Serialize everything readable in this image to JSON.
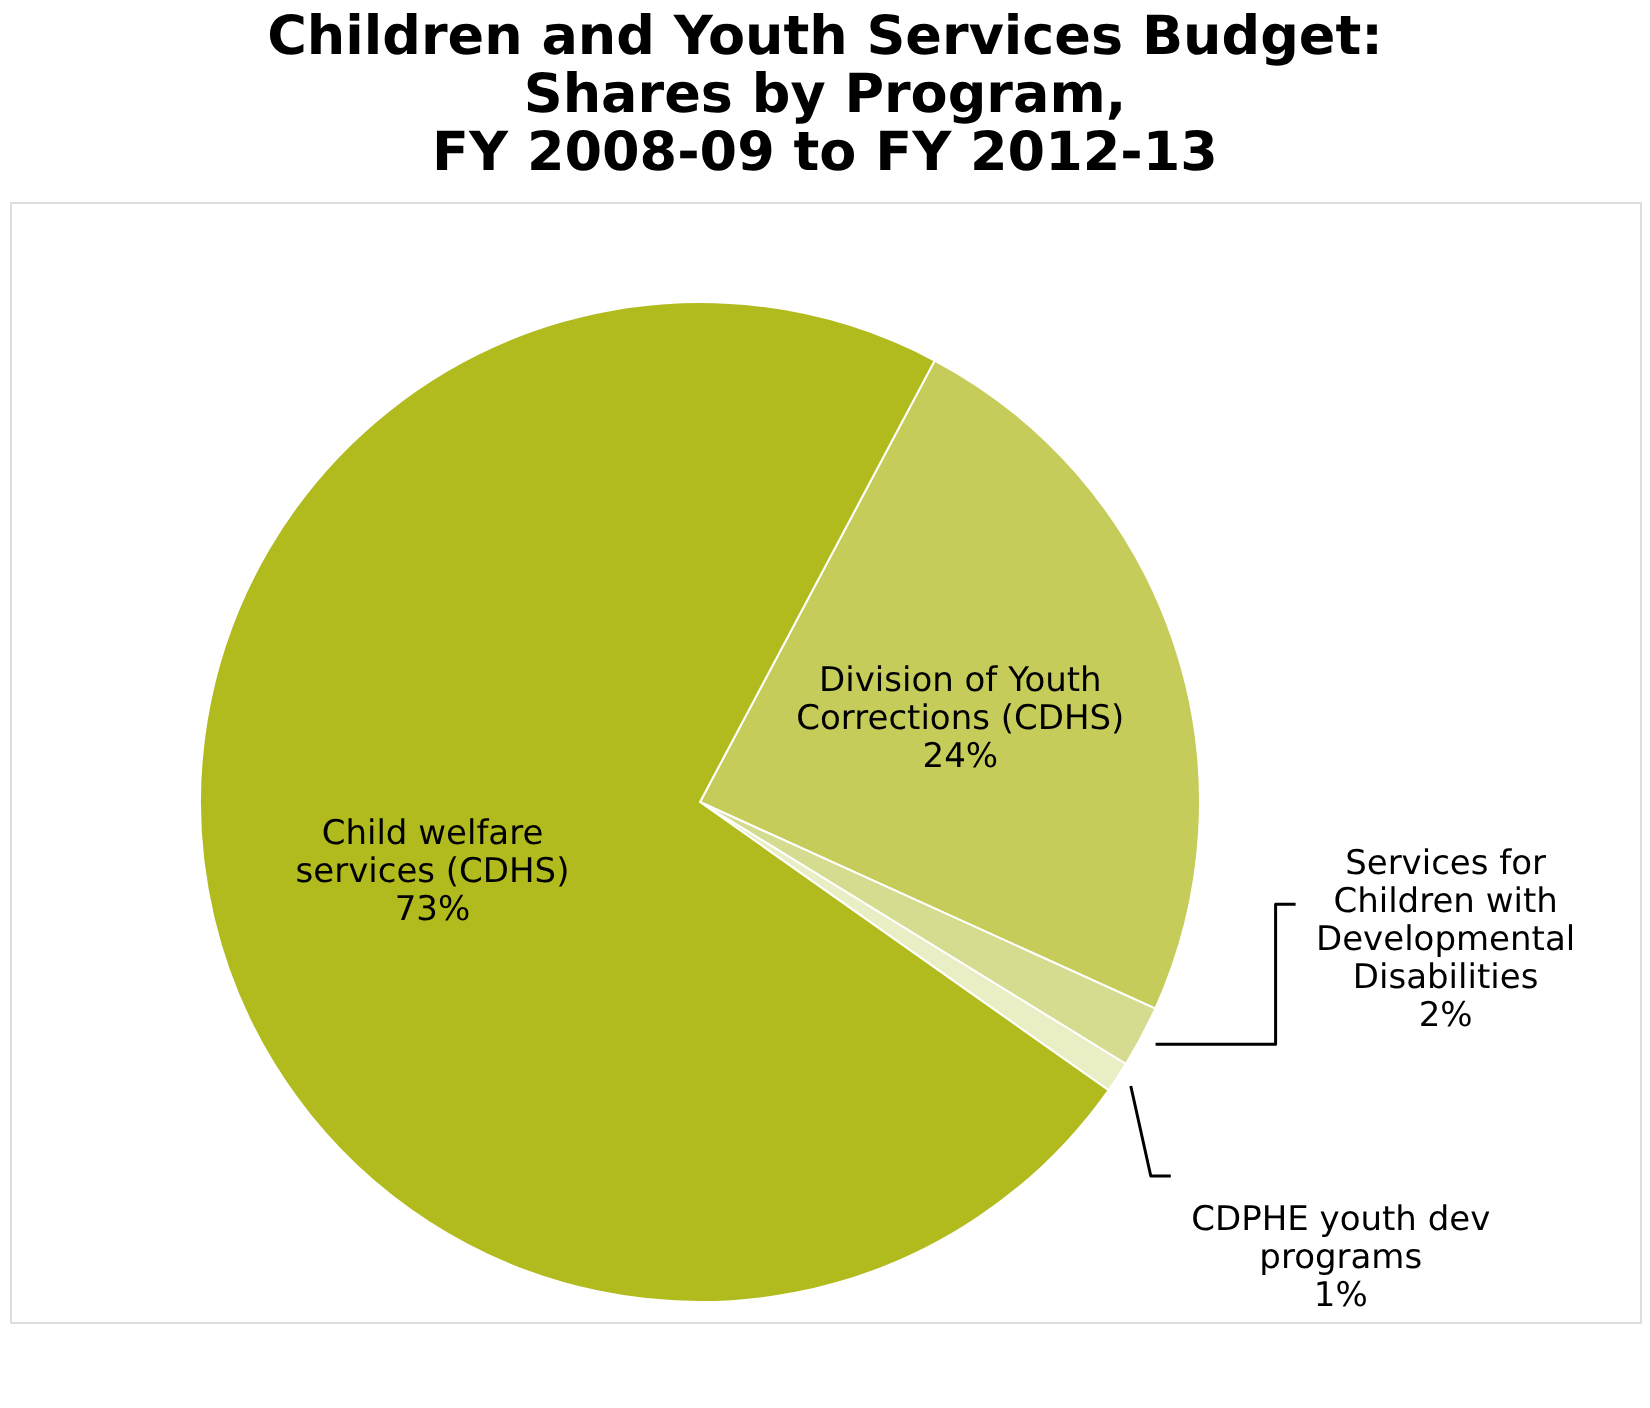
{
  "chart_data": {
    "type": "pie",
    "title": "Children and Youth Services Budget: Shares by Program, FY 2008-09 to FY 2012-13",
    "categories": [
      "Division of Youth Corrections (CDHS)",
      "Services for Children with Developmental Disabilities",
      "CDPHE youth dev programs",
      "Child welfare services (CDHS)"
    ],
    "values": [
      24,
      2,
      1,
      73
    ],
    "colors": [
      "#c5cc5a",
      "#d6dc8f",
      "#eaeec4",
      "#b2bb1e"
    ],
    "value_labels": [
      "24%",
      "2%",
      "1%",
      "73%"
    ],
    "legend": false
  }
}
